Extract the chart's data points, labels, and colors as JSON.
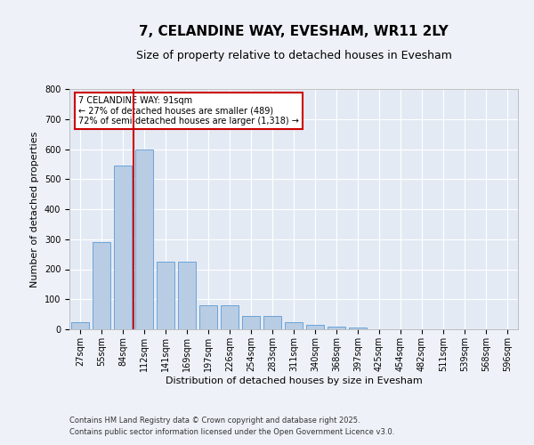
{
  "title": "7, CELANDINE WAY, EVESHAM, WR11 2LY",
  "subtitle": "Size of property relative to detached houses in Evesham",
  "xlabel": "Distribution of detached houses by size in Evesham",
  "ylabel": "Number of detached properties",
  "categories": [
    "27sqm",
    "55sqm",
    "84sqm",
    "112sqm",
    "141sqm",
    "169sqm",
    "197sqm",
    "226sqm",
    "254sqm",
    "283sqm",
    "311sqm",
    "340sqm",
    "368sqm",
    "397sqm",
    "425sqm",
    "454sqm",
    "482sqm",
    "511sqm",
    "539sqm",
    "568sqm",
    "596sqm"
  ],
  "values": [
    25,
    290,
    545,
    600,
    225,
    225,
    80,
    80,
    45,
    45,
    25,
    15,
    10,
    5,
    0,
    0,
    0,
    0,
    0,
    0,
    0
  ],
  "bar_color": "#b8cce4",
  "bar_edge_color": "#5b9bd5",
  "vline_color": "#cc0000",
  "annotation_text": "7 CELANDINE WAY: 91sqm\n← 27% of detached houses are smaller (489)\n72% of semi-detached houses are larger (1,318) →",
  "annotation_box_color": "#ffffff",
  "annotation_box_edge": "#cc0000",
  "ylim": [
    0,
    800
  ],
  "yticks": [
    0,
    100,
    200,
    300,
    400,
    500,
    600,
    700,
    800
  ],
  "footer_line1": "Contains HM Land Registry data © Crown copyright and database right 2025.",
  "footer_line2": "Contains public sector information licensed under the Open Government Licence v3.0.",
  "bg_color": "#eef2f8",
  "plot_bg_color": "#e4eaf4",
  "title_fontsize": 11,
  "subtitle_fontsize": 9,
  "axis_label_fontsize": 8,
  "tick_fontsize": 7,
  "footer_fontsize": 6,
  "annot_fontsize": 7
}
